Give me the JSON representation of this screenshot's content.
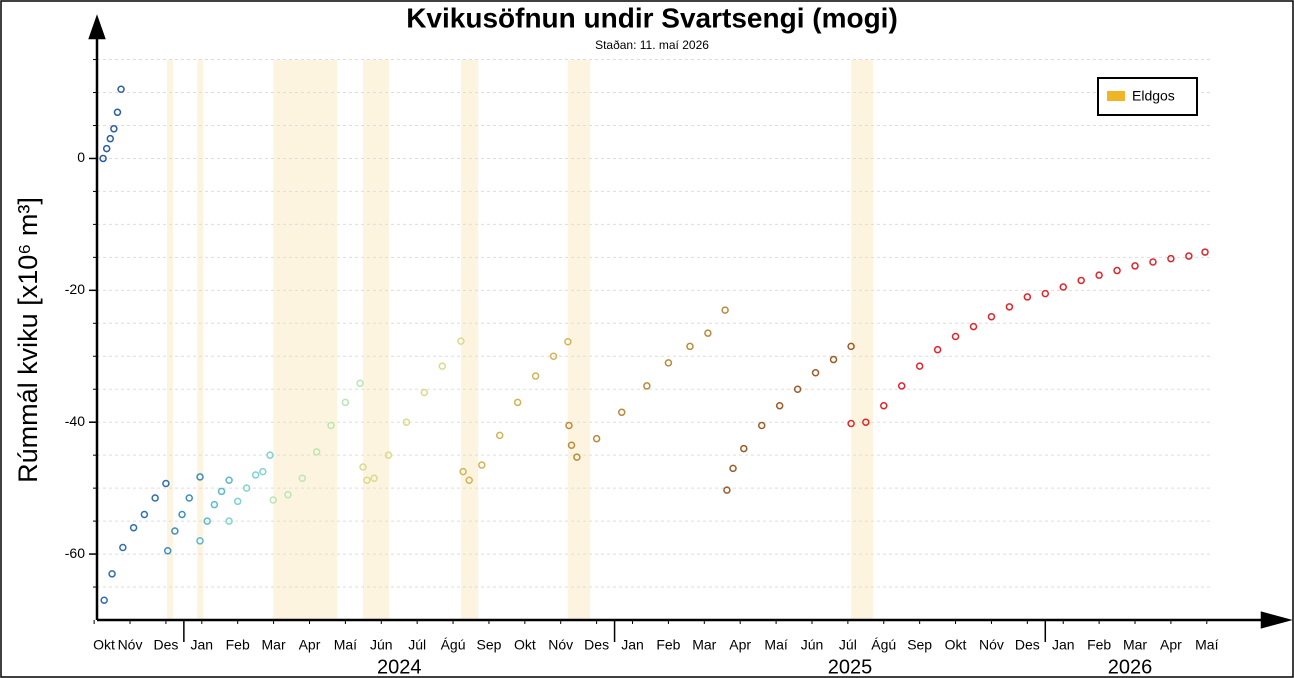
{
  "chart_data": {
    "type": "scatter",
    "title": "Kvikusöfnun undir Svartsengi (mogi)",
    "subtitle": "Staðan: 11. maí 2026",
    "y_label": "Rúmmál kviku [x10⁶ m³]",
    "xlim": [
      0.58,
      33.4
    ],
    "ylim": [
      -70,
      21
    ],
    "yticks": [
      -60,
      -40,
      -20,
      0
    ],
    "minor_yticks": [
      -65,
      -55,
      -50,
      -45,
      -35,
      -30,
      -25,
      -15,
      -10,
      -5,
      5,
      10,
      15
    ],
    "grid": true,
    "xticks": [
      {
        "value": 0.5,
        "label": "Okt"
      },
      {
        "value": 1.5,
        "label": "Nóv"
      },
      {
        "value": 2.5,
        "label": "Des"
      },
      {
        "value": 3.5,
        "label": "Jan"
      },
      {
        "value": 4.5,
        "label": "Feb"
      },
      {
        "value": 5.5,
        "label": "Mar"
      },
      {
        "value": 6.5,
        "label": "Apr"
      },
      {
        "value": 7.5,
        "label": "Maí"
      },
      {
        "value": 8.5,
        "label": "Jún"
      },
      {
        "value": 9.5,
        "label": "Júl"
      },
      {
        "value": 10.5,
        "label": "Ágú"
      },
      {
        "value": 11.5,
        "label": "Sep"
      },
      {
        "value": 12.5,
        "label": "Okt"
      },
      {
        "value": 13.5,
        "label": "Nóv"
      },
      {
        "value": 14.5,
        "label": "Des"
      },
      {
        "value": 15.5,
        "label": "Jan"
      },
      {
        "value": 16.5,
        "label": "Feb"
      },
      {
        "value": 17.5,
        "label": "Mar"
      },
      {
        "value": 18.5,
        "label": "Apr"
      },
      {
        "value": 19.5,
        "label": "Maí"
      },
      {
        "value": 20.5,
        "label": "Jún"
      },
      {
        "value": 21.5,
        "label": "Júl"
      },
      {
        "value": 22.5,
        "label": "Ágú"
      },
      {
        "value": 23.5,
        "label": "Sep"
      },
      {
        "value": 24.5,
        "label": "Okt"
      },
      {
        "value": 25.5,
        "label": "Nóv"
      },
      {
        "value": 26.5,
        "label": "Des"
      },
      {
        "value": 27.5,
        "label": "Jan"
      },
      {
        "value": 28.5,
        "label": "Feb"
      },
      {
        "value": 29.5,
        "label": "Mar"
      },
      {
        "value": 30.5,
        "label": "Apr"
      },
      {
        "value": 31.5,
        "label": "Maí"
      }
    ],
    "year_boundaries": [
      3,
      15,
      27
    ],
    "year_ticks": [
      {
        "value": 9.0,
        "label": "2024"
      },
      {
        "value": 21.56,
        "label": "2025"
      },
      {
        "value": 29.36,
        "label": "2026"
      }
    ],
    "eruptions": {
      "name": "Eldgos",
      "color": "#f0b429",
      "spans": [
        [
          2.53,
          2.7
        ],
        [
          3.37,
          3.54
        ],
        [
          5.49,
          7.27
        ],
        [
          7.99,
          8.72
        ],
        [
          10.72,
          11.2
        ],
        [
          13.7,
          14.32
        ],
        [
          21.59,
          22.2
        ]
      ]
    },
    "legend_position": "upper right",
    "series": [
      {
        "color": "#2a5caa",
        "x": [
          0.75,
          0.85,
          0.95,
          1.05,
          1.15,
          1.25
        ],
        "values": [
          0,
          1.5,
          3,
          4.5,
          7,
          10.5
        ]
      },
      {
        "color": "#2e6db0",
        "x": [
          0.78,
          1.0,
          1.3,
          1.6,
          1.9,
          2.2,
          2.5
        ],
        "values": [
          -67,
          -63,
          -59,
          -56,
          -54,
          -51.5,
          -49.3
        ]
      },
      {
        "color": "#3a8fc4",
        "x": [
          2.55,
          2.75,
          2.95,
          3.15,
          3.45
        ],
        "values": [
          -59.5,
          -56.5,
          -54,
          -51.5,
          -48.3
        ]
      },
      {
        "color": "#5bb8d0",
        "x": [
          3.45,
          3.65,
          3.85,
          4.05,
          4.26
        ],
        "values": [
          -58,
          -55,
          -52.5,
          -50.5,
          -48.8
        ]
      },
      {
        "color": "#7fd3d3",
        "x": [
          4.26,
          4.5,
          4.75,
          5.0,
          5.2,
          5.4
        ],
        "values": [
          -55,
          -52,
          -50,
          -48,
          -47.5,
          -45
        ]
      },
      {
        "color": "#b9e6b4",
        "x": [
          5.49,
          5.9,
          6.3,
          6.7,
          7.1,
          7.5,
          7.91
        ],
        "values": [
          -51.8,
          -51,
          -48.5,
          -44.5,
          -40.5,
          -37,
          -34.1
        ]
      },
      {
        "color": "#dcd98a",
        "x": [
          7.99,
          8.1,
          8.3,
          8.7,
          9.2,
          9.7,
          10.2,
          10.72
        ],
        "values": [
          -46.8,
          -48.8,
          -48.5,
          -45,
          -40,
          -35.5,
          -31.5,
          -27.7
        ]
      },
      {
        "color": "#d2b35a",
        "x": [
          10.78,
          10.95,
          11.3,
          11.8,
          12.3,
          12.8,
          13.3,
          13.7
        ],
        "values": [
          -47.5,
          -48.8,
          -46.5,
          -42,
          -37,
          -33,
          -30,
          -27.8
        ]
      },
      {
        "color": "#b98a3a",
        "x": [
          13.73,
          13.8,
          13.95,
          14.5,
          15.2,
          15.9,
          16.5,
          17.1,
          17.6,
          18.08
        ],
        "values": [
          -40.5,
          -43.5,
          -45.3,
          -42.5,
          -38.5,
          -34.5,
          -31,
          -28.5,
          -26.5,
          -23
        ]
      },
      {
        "color": "#9c5a26",
        "x": [
          18.13,
          18.3,
          18.6,
          19.1,
          19.6,
          20.1,
          20.6,
          21.1,
          21.59
        ],
        "values": [
          -50.3,
          -47,
          -44,
          -40.5,
          -37.5,
          -35,
          -32.5,
          -30.5,
          -28.5
        ]
      },
      {
        "color": "#e0242a",
        "x": [
          21.59,
          22.0,
          22.5,
          23.0,
          23.5,
          24.0,
          24.5,
          25.0,
          25.5,
          26.0,
          26.5,
          27.0,
          27.5,
          28.0,
          28.5,
          29.0,
          29.5,
          30.0,
          30.5,
          31.0,
          31.45
        ],
        "values": [
          -40.2,
          -40,
          -37.5,
          -34.5,
          -31.5,
          -29,
          -27,
          -25.5,
          -24,
          -22.5,
          -21,
          -20.5,
          -19.5,
          -18.5,
          -17.7,
          -17,
          -16.3,
          -15.7,
          -15.2,
          -14.8,
          -14.2
        ]
      }
    ]
  }
}
